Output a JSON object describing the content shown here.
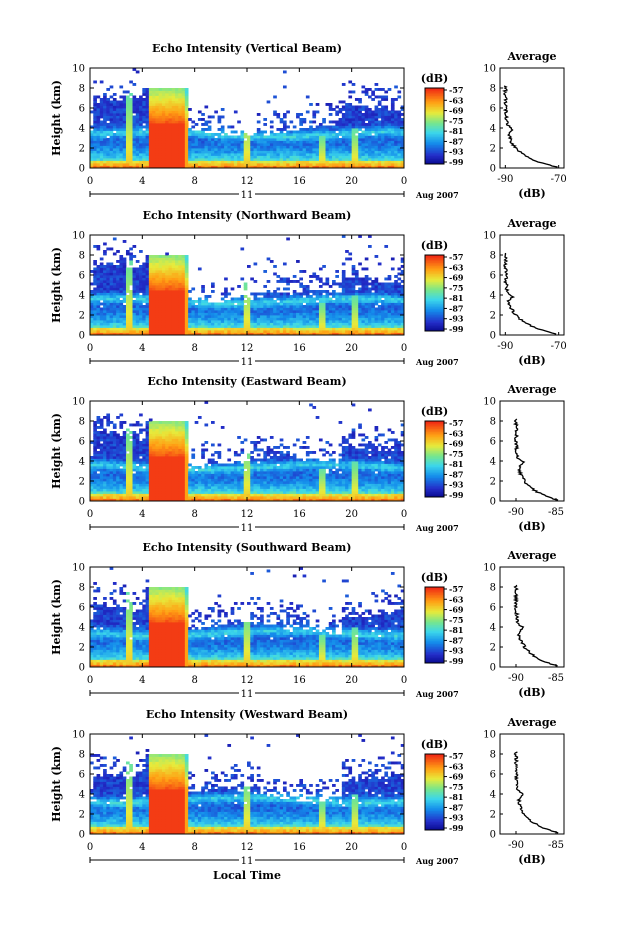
{
  "figure": {
    "x_axis_label": "Local Time",
    "date_label": "11",
    "date_note": "Aug 2007"
  },
  "chart_data": [
    {
      "type": "heatmap",
      "title": "Echo Intensity (Vertical Beam)",
      "xlabel": "Local Time",
      "ylabel": "Height (km)",
      "x_ticks": [
        "0",
        "4",
        "8",
        "12",
        "16",
        "20",
        "0"
      ],
      "y_ticks": [
        "0",
        "2",
        "4",
        "6",
        "8",
        "10"
      ],
      "xlim": [
        0,
        24
      ],
      "ylim": [
        0,
        10
      ],
      "colorbar": {
        "unit": "(dB)",
        "ticks": [
          "-57",
          "-63",
          "-69",
          "-75",
          "-81",
          "-87",
          "-93",
          "-99"
        ],
        "range": [
          -99,
          -57
        ]
      },
      "profile": {
        "title": "Average",
        "xlabel": "(dB)",
        "x_ticks": [
          "-90",
          "-70"
        ],
        "xlim": [
          -92,
          -68
        ],
        "y_ticks": [
          "0",
          "2",
          "4",
          "6",
          "8",
          "10"
        ]
      }
    },
    {
      "type": "heatmap",
      "title": "Echo Intensity (Northward Beam)",
      "xlabel": "Local Time",
      "ylabel": "Height (km)",
      "x_ticks": [
        "0",
        "4",
        "8",
        "12",
        "16",
        "20",
        "0"
      ],
      "y_ticks": [
        "0",
        "2",
        "4",
        "6",
        "8",
        "10"
      ],
      "xlim": [
        0,
        24
      ],
      "ylim": [
        0,
        10
      ],
      "colorbar": {
        "unit": "(dB)",
        "ticks": [
          "-57",
          "-63",
          "-69",
          "-75",
          "-81",
          "-87",
          "-93",
          "-99"
        ],
        "range": [
          -99,
          -57
        ]
      },
      "profile": {
        "title": "Average",
        "xlabel": "(dB)",
        "x_ticks": [
          "-90",
          "-70"
        ],
        "xlim": [
          -92,
          -68
        ],
        "y_ticks": [
          "0",
          "2",
          "4",
          "6",
          "8",
          "10"
        ]
      }
    },
    {
      "type": "heatmap",
      "title": "Echo Intensity (Eastward Beam)",
      "xlabel": "Local Time",
      "ylabel": "Height (km)",
      "x_ticks": [
        "0",
        "4",
        "8",
        "12",
        "16",
        "20",
        "0"
      ],
      "y_ticks": [
        "0",
        "2",
        "4",
        "6",
        "8",
        "10"
      ],
      "xlim": [
        0,
        24
      ],
      "ylim": [
        0,
        10
      ],
      "colorbar": {
        "unit": "(dB)",
        "ticks": [
          "-57",
          "-63",
          "-69",
          "-75",
          "-81",
          "-87",
          "-93",
          "-99"
        ],
        "range": [
          -99,
          -57
        ]
      },
      "profile": {
        "title": "Average",
        "xlabel": "(dB)",
        "x_ticks": [
          "-90",
          "-85"
        ],
        "xlim": [
          -92,
          -84
        ],
        "y_ticks": [
          "0",
          "2",
          "4",
          "6",
          "8",
          "10"
        ]
      }
    },
    {
      "type": "heatmap",
      "title": "Echo Intensity (Southward Beam)",
      "xlabel": "Local Time",
      "ylabel": "Height (km)",
      "x_ticks": [
        "0",
        "4",
        "8",
        "12",
        "16",
        "20",
        "0"
      ],
      "y_ticks": [
        "0",
        "2",
        "4",
        "6",
        "8",
        "10"
      ],
      "xlim": [
        0,
        24
      ],
      "ylim": [
        0,
        10
      ],
      "colorbar": {
        "unit": "(dB)",
        "ticks": [
          "-57",
          "-63",
          "-69",
          "-75",
          "-81",
          "-87",
          "-93",
          "-99"
        ],
        "range": [
          -99,
          -57
        ]
      },
      "profile": {
        "title": "Average",
        "xlabel": "(dB)",
        "x_ticks": [
          "-90",
          "-85"
        ],
        "xlim": [
          -92,
          -84
        ],
        "y_ticks": [
          "0",
          "2",
          "4",
          "6",
          "8",
          "10"
        ]
      }
    },
    {
      "type": "heatmap",
      "title": "Echo Intensity (Westward Beam)",
      "xlabel": "Local Time",
      "ylabel": "Height (km)",
      "x_ticks": [
        "0",
        "4",
        "8",
        "12",
        "16",
        "20",
        "0"
      ],
      "y_ticks": [
        "0",
        "2",
        "4",
        "6",
        "8",
        "10"
      ],
      "xlim": [
        0,
        24
      ],
      "ylim": [
        0,
        10
      ],
      "colorbar": {
        "unit": "(dB)",
        "ticks": [
          "-57",
          "-63",
          "-69",
          "-75",
          "-81",
          "-87",
          "-93",
          "-99"
        ],
        "range": [
          -99,
          -57
        ]
      },
      "profile": {
        "title": "Average",
        "xlabel": "(dB)",
        "x_ticks": [
          "-90",
          "-85"
        ],
        "xlim": [
          -92,
          -84
        ],
        "y_ticks": [
          "0",
          "2",
          "4",
          "6",
          "8",
          "10"
        ]
      }
    }
  ]
}
